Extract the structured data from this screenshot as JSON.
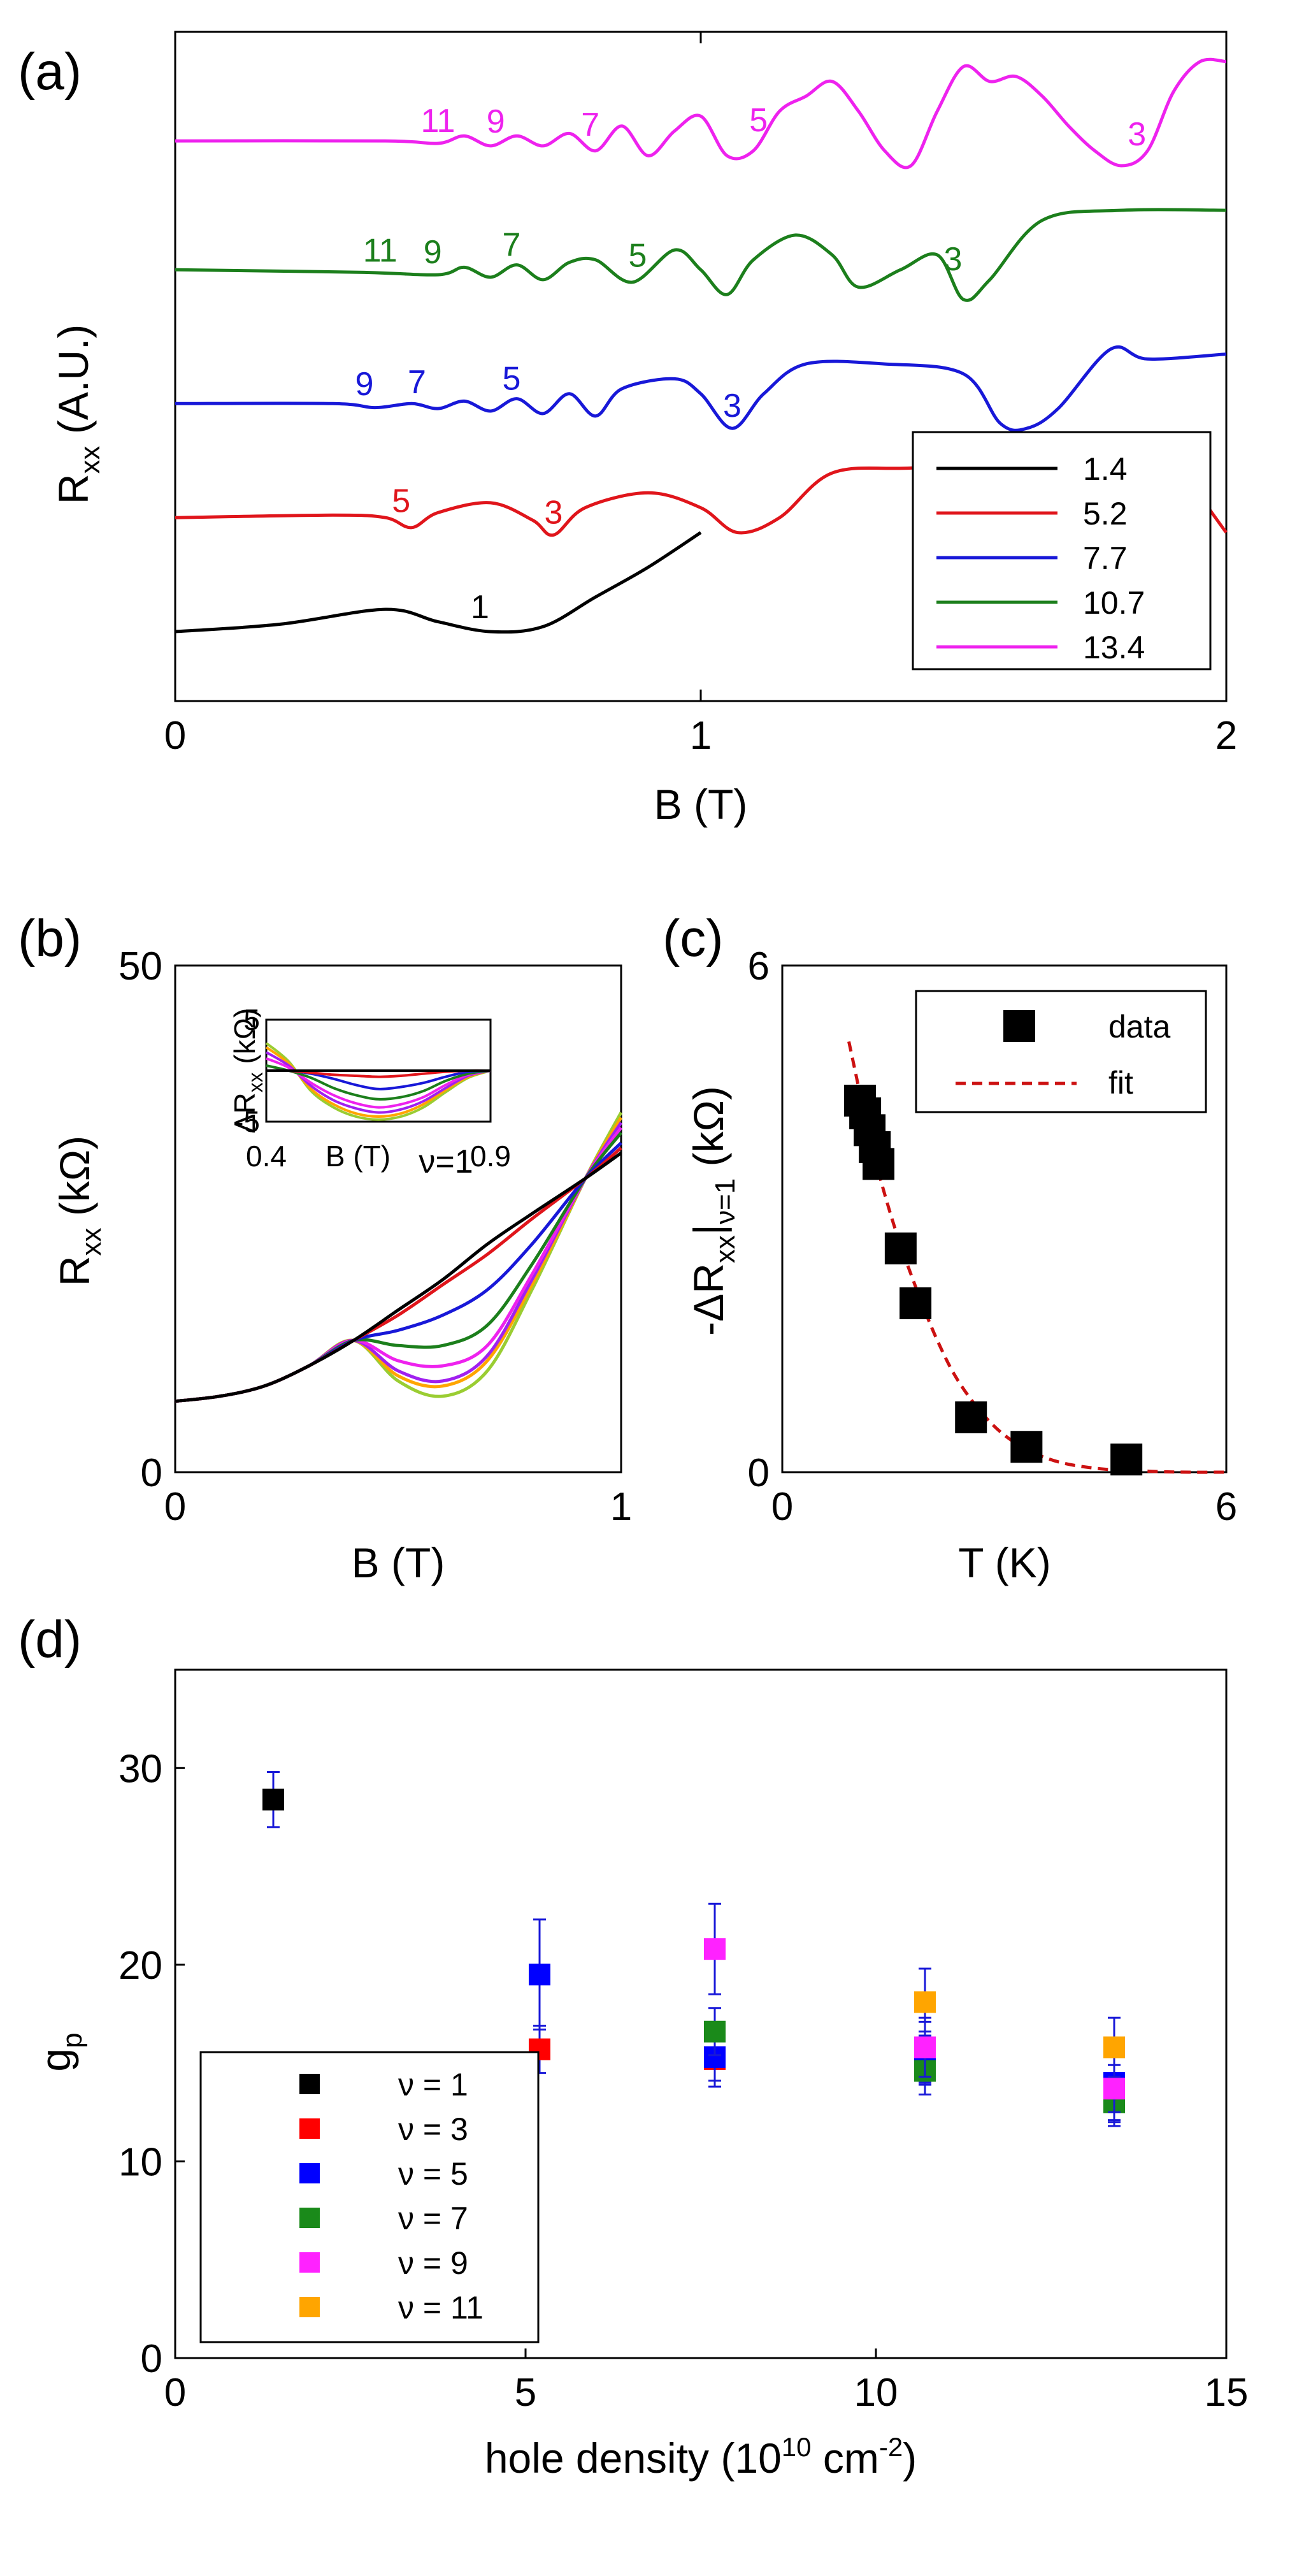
{
  "chart_data": [
    {
      "panel_label": "(a)",
      "type": "line",
      "xlabel": "B (T)",
      "ylabel_main": "R",
      "ylabel_sub": "xx",
      "ylabel_suffix": " (A.U.)",
      "xlim": [
        0,
        2
      ],
      "xticks": [
        "0",
        "1",
        "2"
      ],
      "legend_placement": "bottom-right",
      "series": [
        {
          "name": "1.4",
          "color": "#000000",
          "offset": 0.14,
          "x": [
            0,
            0.2,
            0.4,
            0.5,
            0.6,
            0.7,
            0.8,
            0.9,
            1.0
          ],
          "y": [
            0,
            0.015,
            0.045,
            0.02,
            0.0,
            0.01,
            0.07,
            0.13,
            0.2
          ]
        },
        {
          "name": "5.2",
          "color": "#e0151b",
          "offset": 0.37,
          "x": [
            0,
            0.3,
            0.4,
            0.45,
            0.5,
            0.6,
            0.68,
            0.72,
            0.78,
            0.9,
            1.0,
            1.07,
            1.15,
            1.25,
            1.4,
            1.6,
            1.8,
            1.9,
            2.0
          ],
          "y": [
            0,
            0.005,
            0.0,
            -0.02,
            0.01,
            0.03,
            -0.005,
            -0.035,
            0.02,
            0.05,
            0.02,
            -0.03,
            0.0,
            0.09,
            0.1,
            0.11,
            0.12,
            0.1,
            -0.03
          ]
        },
        {
          "name": "7.7",
          "color": "#1818d8",
          "offset": 0.6,
          "x": [
            0,
            0.3,
            0.38,
            0.45,
            0.5,
            0.55,
            0.6,
            0.65,
            0.7,
            0.75,
            0.8,
            0.85,
            0.95,
            1.0,
            1.06,
            1.12,
            1.2,
            1.35,
            1.5,
            1.57,
            1.62,
            1.68,
            1.78,
            1.85,
            2.0
          ],
          "y": [
            0,
            0.0,
            -0.008,
            0.0,
            -0.01,
            0.005,
            -0.015,
            0.01,
            -0.02,
            0.02,
            -0.025,
            0.03,
            0.05,
            0.02,
            -0.05,
            0.02,
            0.08,
            0.08,
            0.06,
            -0.04,
            -0.05,
            -0.01,
            0.11,
            0.09,
            0.1
          ]
        },
        {
          "name": "10.7",
          "color": "#1c7f1c",
          "offset": 0.87,
          "x": [
            0,
            0.35,
            0.5,
            0.55,
            0.6,
            0.65,
            0.7,
            0.75,
            0.8,
            0.87,
            0.95,
            1.0,
            1.05,
            1.1,
            1.18,
            1.25,
            1.3,
            1.38,
            1.45,
            1.5,
            1.55,
            1.65,
            1.8,
            2.0
          ],
          "y": [
            0,
            -0.005,
            -0.01,
            0.005,
            -0.015,
            0.01,
            -0.02,
            0.015,
            0.02,
            -0.025,
            0.04,
            0.0,
            -0.05,
            0.02,
            0.07,
            0.03,
            -0.035,
            0.0,
            0.03,
            -0.06,
            -0.02,
            0.1,
            0.12,
            0.12
          ]
        },
        {
          "name": "13.4",
          "color": "#ee22ee",
          "offset": 1.13,
          "x": [
            0,
            0.4,
            0.5,
            0.55,
            0.6,
            0.65,
            0.7,
            0.75,
            0.8,
            0.85,
            0.9,
            0.95,
            1.0,
            1.05,
            1.1,
            1.15,
            1.2,
            1.25,
            1.3,
            1.35,
            1.4,
            1.45,
            1.5,
            1.55,
            1.6,
            1.65,
            1.7,
            1.75,
            1.8,
            1.85,
            1.9,
            1.95,
            2.0
          ],
          "y": [
            0,
            0.0,
            -0.005,
            0.01,
            -0.01,
            0.01,
            -0.01,
            0.015,
            -0.02,
            0.03,
            -0.03,
            0.02,
            0.05,
            -0.03,
            -0.02,
            0.06,
            0.09,
            0.12,
            0.06,
            -0.02,
            -0.05,
            0.06,
            0.15,
            0.12,
            0.13,
            0.09,
            0.03,
            -0.02,
            -0.05,
            -0.02,
            0.1,
            0.16,
            0.16
          ]
        }
      ],
      "annotations": [
        {
          "text": "1",
          "x": 0.58,
          "series": 0,
          "color": "#000000"
        },
        {
          "text": "5",
          "x": 0.43,
          "series": 1,
          "color": "#e0151b"
        },
        {
          "text": "3",
          "x": 0.72,
          "series": 1,
          "color": "#e0151b"
        },
        {
          "text": "9",
          "x": 0.36,
          "series": 2,
          "color": "#1818d8"
        },
        {
          "text": "7",
          "x": 0.46,
          "series": 2,
          "color": "#1818d8"
        },
        {
          "text": "5",
          "x": 0.64,
          "series": 2,
          "color": "#1818d8"
        },
        {
          "text": "3",
          "x": 1.06,
          "series": 2,
          "color": "#1818d8"
        },
        {
          "text": "11",
          "x": 0.39,
          "series": 3,
          "color": "#1c7f1c"
        },
        {
          "text": "9",
          "x": 0.49,
          "series": 3,
          "color": "#1c7f1c"
        },
        {
          "text": "7",
          "x": 0.64,
          "series": 3,
          "color": "#1c7f1c"
        },
        {
          "text": "5",
          "x": 0.88,
          "series": 3,
          "color": "#1c7f1c"
        },
        {
          "text": "3",
          "x": 1.48,
          "series": 3,
          "color": "#1c7f1c"
        },
        {
          "text": "11",
          "x": 0.5,
          "series": 4,
          "color": "#ee22ee"
        },
        {
          "text": "9",
          "x": 0.61,
          "series": 4,
          "color": "#ee22ee"
        },
        {
          "text": "7",
          "x": 0.79,
          "series": 4,
          "color": "#ee22ee"
        },
        {
          "text": "5",
          "x": 1.11,
          "series": 4,
          "color": "#ee22ee"
        },
        {
          "text": "3",
          "x": 1.83,
          "series": 4,
          "color": "#ee22ee"
        }
      ]
    },
    {
      "panel_label": "(b)",
      "type": "line",
      "xlabel": "B (T)",
      "ylabel_main": "R",
      "ylabel_sub": "xx",
      "ylabel_suffix": " (kΩ)",
      "xlim": [
        0,
        1
      ],
      "ylim": [
        0,
        50
      ],
      "xticks": [
        "0",
        "1"
      ],
      "yticks": [
        "0",
        "50"
      ],
      "annotation": "ν=1",
      "series_colors": [
        "#000000",
        "#e0151b",
        "#1818d8",
        "#1c7f1c",
        "#ee22ee",
        "#a020f0",
        "#ffa500",
        "#9acd32"
      ],
      "shared_x": [
        0,
        0.1,
        0.2,
        0.3,
        0.4,
        0.5,
        0.6,
        0.7,
        0.8,
        0.92,
        1.0
      ],
      "series_y": [
        [
          7,
          7.5,
          8.5,
          10.5,
          13,
          16,
          19,
          22.5,
          25.5,
          29,
          31.5
        ],
        [
          7,
          7.5,
          8.5,
          10.5,
          13,
          15.5,
          18.5,
          21.5,
          25,
          29,
          32
        ],
        [
          7,
          7.5,
          8.5,
          10.5,
          13,
          14,
          15.5,
          18,
          22.5,
          29,
          32.5
        ],
        [
          7,
          7.5,
          8.5,
          10.5,
          13,
          12.5,
          12.5,
          14.5,
          20.5,
          29,
          33.5
        ],
        [
          7,
          7.5,
          8.5,
          10.5,
          13,
          11,
          10.5,
          12.5,
          19.5,
          29,
          34
        ],
        [
          7,
          7.5,
          8.5,
          10.5,
          13,
          10,
          9,
          11.5,
          19,
          29,
          34.5
        ],
        [
          7,
          7.5,
          8.5,
          10.5,
          13,
          9.5,
          8.5,
          11,
          18.5,
          29,
          35
        ],
        [
          7,
          7.5,
          8.5,
          10.5,
          13,
          9,
          7.5,
          10,
          18,
          29,
          35.5
        ]
      ],
      "inset": {
        "xlabel": "B (T)",
        "ylabel_main": "ΔR",
        "ylabel_sub": "xx",
        "ylabel_suffix": " (kΩ)",
        "xlim": [
          0.4,
          0.9
        ],
        "ylim": [
          -5,
          5
        ],
        "xticks": [
          "0.4",
          "0.9"
        ],
        "yticks": [
          "5",
          "-5"
        ],
        "shared_x": [
          0.4,
          0.45,
          0.5,
          0.55,
          0.6,
          0.65,
          0.7,
          0.75,
          0.8,
          0.85,
          0.9
        ],
        "series_y": [
          [
            0,
            0,
            0,
            0,
            0,
            0,
            0,
            0,
            0,
            0,
            0
          ],
          [
            0,
            0,
            -0.2,
            -0.4,
            -0.5,
            -0.6,
            -0.5,
            -0.3,
            -0.1,
            0,
            0
          ],
          [
            0,
            0,
            -0.3,
            -0.8,
            -1.4,
            -1.8,
            -1.6,
            -1.2,
            -0.6,
            -0.1,
            0
          ],
          [
            0.5,
            0,
            -0.7,
            -1.7,
            -2.4,
            -2.8,
            -2.6,
            -2,
            -1,
            -0.3,
            0
          ],
          [
            1.2,
            0.3,
            -1.2,
            -2.4,
            -3.2,
            -3.6,
            -3.3,
            -2.6,
            -1.4,
            -0.4,
            0
          ],
          [
            1.8,
            0.5,
            -1.5,
            -2.9,
            -3.7,
            -4.1,
            -3.8,
            -3,
            -1.7,
            -0.5,
            0
          ],
          [
            2.3,
            0.7,
            -1.8,
            -3.3,
            -4.2,
            -4.5,
            -4.2,
            -3.3,
            -1.9,
            -0.6,
            0
          ],
          [
            2.7,
            0.9,
            -2,
            -3.6,
            -4.5,
            -4.8,
            -4.5,
            -3.6,
            -2.1,
            -0.7,
            0
          ]
        ]
      }
    },
    {
      "panel_label": "(c)",
      "type": "scatter",
      "xlabel": "T (K)",
      "ylabel": "-ΔR",
      "ylabel_sub": "xx",
      "ylabel_bar_sub": "ν=1",
      "ylabel_suffix": " (kΩ)",
      "xlim": [
        0,
        6
      ],
      "ylim": [
        0,
        6
      ],
      "xticks": [
        "0",
        "6"
      ],
      "yticks": [
        "0",
        "6"
      ],
      "legend_placement": "top-right",
      "legend": [
        {
          "label": "data"
        },
        {
          "label": "fit"
        }
      ],
      "data": {
        "x": [
          1.05,
          1.12,
          1.18,
          1.25,
          1.3,
          1.6,
          1.8,
          2.55,
          3.3,
          4.65
        ],
        "y": [
          4.4,
          4.25,
          4.05,
          3.85,
          3.65,
          2.65,
          2.0,
          0.65,
          0.3,
          0.15
        ]
      },
      "fit": {
        "color": "#cc1111",
        "x": [
          0.9,
          1.2,
          1.5,
          1.8,
          2.1,
          2.4,
          2.8,
          3.2,
          3.7,
          4.3,
          5.0,
          5.5,
          6.0
        ],
        "y": [
          5.1,
          3.9,
          2.95,
          2.2,
          1.55,
          1.05,
          0.6,
          0.32,
          0.13,
          0.04,
          0.01,
          0.0,
          0.0
        ]
      }
    },
    {
      "panel_label": "(d)",
      "type": "scatter",
      "xlabel_main": "hole density (10",
      "xlabel_sup1": "10",
      "xlabel_mid": " cm",
      "xlabel_sup2": "-2",
      "xlabel_end": ")",
      "ylabel_main": "g",
      "ylabel_sub": "p",
      "xlim": [
        0,
        15
      ],
      "ylim": [
        0,
        35
      ],
      "xticks": [
        "0",
        "5",
        "10",
        "15"
      ],
      "yticks": [
        "0",
        "10",
        "20",
        "30"
      ],
      "legend_placement": "bottom-left",
      "series": [
        {
          "name": "ν = 1",
          "color": "#000000",
          "x": [
            1.4
          ],
          "y": [
            28.4
          ],
          "err": [
            1.4
          ]
        },
        {
          "name": "ν = 3",
          "color": "#ff0000",
          "x": [
            5.2,
            7.7,
            10.7,
            13.4
          ],
          "y": [
            15.7,
            15.2,
            15.3,
            13.3
          ],
          "err": [
            1.2,
            1.1,
            1.3,
            1.2
          ]
        },
        {
          "name": "ν = 5",
          "color": "#0000ff",
          "x": [
            5.2,
            7.7,
            10.7,
            13.4
          ],
          "y": [
            19.5,
            15.3,
            15.5,
            14.0
          ],
          "err": [
            2.8,
            1.5,
            1.6,
            2.2
          ]
        },
        {
          "name": "ν = 7",
          "color": "#1a8a1a",
          "x": [
            7.7,
            10.7,
            13.4
          ],
          "y": [
            16.6,
            14.6,
            13.0
          ],
          "err": [
            1.2,
            1.2,
            1.0
          ]
        },
        {
          "name": "ν = 9",
          "color": "#ff22ff",
          "x": [
            7.7,
            10.7,
            13.4
          ],
          "y": [
            20.8,
            15.8,
            13.7
          ],
          "err": [
            2.3,
            1.5,
            1.2
          ]
        },
        {
          "name": "ν = 11",
          "color": "#ffa500",
          "x": [
            10.7,
            13.4
          ],
          "y": [
            18.1,
            15.8
          ],
          "err": [
            1.7,
            1.5
          ]
        }
      ]
    }
  ]
}
